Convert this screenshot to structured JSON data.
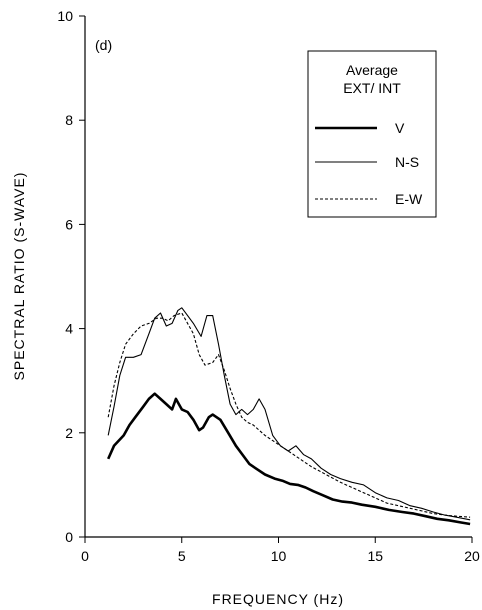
{
  "chart_data": {
    "type": "line",
    "panel_label": "(d)",
    "xlabel": "FREQUENCY (Hz)",
    "ylabel": "SPECTRAL RATIO (S-WAVE)",
    "xlim": [
      0,
      20
    ],
    "ylim": [
      0,
      10
    ],
    "x_ticks": [
      0,
      5,
      10,
      15,
      20
    ],
    "y_ticks": [
      0,
      2,
      4,
      6,
      8,
      10
    ],
    "grid": false,
    "legend_placement": "top-right",
    "legend_title_lines": [
      "Average",
      "EXT/ INT"
    ],
    "series": [
      {
        "name": "V",
        "style": "solid-thick",
        "x": [
          1.2,
          1.5,
          2.0,
          2.3,
          2.6,
          3.0,
          3.3,
          3.6,
          3.9,
          4.2,
          4.5,
          4.7,
          5.0,
          5.3,
          5.6,
          5.9,
          6.1,
          6.4,
          6.6,
          7.0,
          7.4,
          7.8,
          8.1,
          8.5,
          8.9,
          9.3,
          9.8,
          10.2,
          10.6,
          11.0,
          11.4,
          11.8,
          12.3,
          12.8,
          13.3,
          13.8,
          14.3,
          15.0,
          15.7,
          16.4,
          17.0,
          17.6,
          18.2,
          18.8,
          19.4,
          19.9
        ],
        "values": [
          1.5,
          1.75,
          1.95,
          2.15,
          2.3,
          2.5,
          2.65,
          2.75,
          2.65,
          2.55,
          2.45,
          2.65,
          2.45,
          2.4,
          2.25,
          2.05,
          2.1,
          2.3,
          2.35,
          2.25,
          2.0,
          1.75,
          1.6,
          1.4,
          1.3,
          1.2,
          1.12,
          1.08,
          1.02,
          1.0,
          0.95,
          0.88,
          0.8,
          0.72,
          0.68,
          0.66,
          0.62,
          0.58,
          0.52,
          0.48,
          0.45,
          0.4,
          0.35,
          0.32,
          0.28,
          0.25
        ]
      },
      {
        "name": "N-S",
        "style": "solid-thin",
        "x": [
          1.2,
          1.5,
          1.8,
          2.1,
          2.5,
          2.9,
          3.3,
          3.6,
          3.9,
          4.2,
          4.5,
          4.8,
          5.0,
          5.3,
          5.6,
          6.0,
          6.3,
          6.6,
          6.9,
          7.2,
          7.5,
          7.8,
          8.1,
          8.4,
          8.7,
          9.0,
          9.3,
          9.7,
          10.1,
          10.5,
          10.9,
          11.3,
          11.7,
          12.2,
          12.7,
          13.2,
          13.8,
          14.4,
          15.0,
          15.6,
          16.2,
          16.8,
          17.4,
          18.0,
          18.6,
          19.2,
          19.9
        ],
        "values": [
          1.95,
          2.5,
          3.1,
          3.45,
          3.45,
          3.5,
          3.9,
          4.2,
          4.3,
          4.05,
          4.1,
          4.35,
          4.4,
          4.25,
          4.1,
          3.85,
          4.25,
          4.25,
          3.7,
          3.1,
          2.55,
          2.35,
          2.45,
          2.35,
          2.45,
          2.65,
          2.45,
          1.95,
          1.75,
          1.65,
          1.75,
          1.58,
          1.5,
          1.32,
          1.2,
          1.12,
          1.05,
          1.0,
          0.85,
          0.75,
          0.7,
          0.6,
          0.55,
          0.48,
          0.42,
          0.38,
          0.33
        ]
      },
      {
        "name": "E-W",
        "style": "dashed",
        "x": [
          1.2,
          1.5,
          1.8,
          2.1,
          2.5,
          2.9,
          3.3,
          3.7,
          4.0,
          4.3,
          4.6,
          5.0,
          5.3,
          5.6,
          5.9,
          6.2,
          6.6,
          6.9,
          7.2,
          7.5,
          7.8,
          8.1,
          8.4,
          8.7,
          9.0,
          9.3,
          9.7,
          10.1,
          10.5,
          10.9,
          11.3,
          11.7,
          12.2,
          12.7,
          13.2,
          13.8,
          14.4,
          15.0,
          15.6,
          16.2,
          16.8,
          17.4,
          18.0,
          18.6,
          19.2,
          19.9
        ],
        "values": [
          2.3,
          2.9,
          3.35,
          3.7,
          3.9,
          4.05,
          4.1,
          4.2,
          4.2,
          4.15,
          4.25,
          4.3,
          4.1,
          3.9,
          3.5,
          3.3,
          3.35,
          3.5,
          3.2,
          2.85,
          2.55,
          2.3,
          2.2,
          2.15,
          2.05,
          1.95,
          1.85,
          1.75,
          1.65,
          1.55,
          1.45,
          1.35,
          1.25,
          1.15,
          1.05,
          0.95,
          0.85,
          0.75,
          0.65,
          0.6,
          0.55,
          0.5,
          0.45,
          0.42,
          0.4,
          0.38
        ]
      }
    ]
  }
}
